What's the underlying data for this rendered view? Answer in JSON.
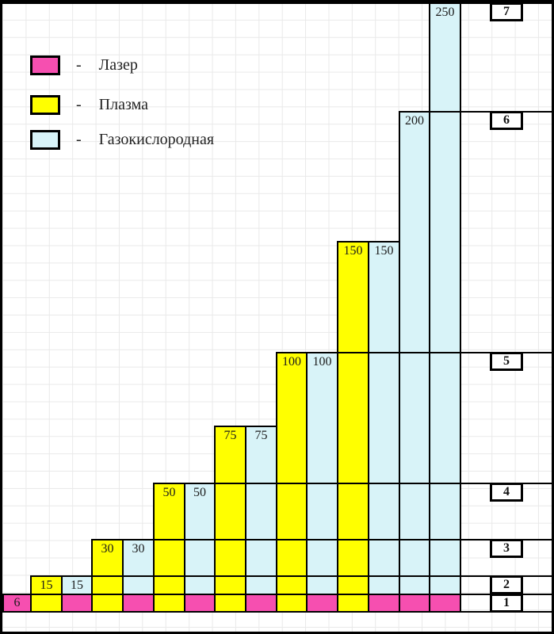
{
  "chart_data": {
    "type": "bar",
    "title": "",
    "xlabel": "",
    "ylabel": "",
    "ylim": [
      0,
      250
    ],
    "grid": true,
    "legend_position": "top-left",
    "legend_separator": "-",
    "legend": [
      {
        "series": "laser",
        "label": "Лазер",
        "color": "#f64fb0"
      },
      {
        "series": "plasma",
        "label": "Плазма",
        "color": "#ffff00"
      },
      {
        "series": "oxyfuel",
        "label": "Газокислородная",
        "color": "#d8f3f8"
      }
    ],
    "baseline_row": {
      "series": "laser",
      "value": 6,
      "label": "6"
    },
    "columns": [
      {
        "series": "plasma",
        "value": 15,
        "label": "15"
      },
      {
        "series": "oxyfuel",
        "value": 15,
        "label": "15"
      },
      {
        "series": "plasma",
        "value": 30,
        "label": "30"
      },
      {
        "series": "oxyfuel",
        "value": 30,
        "label": "30"
      },
      {
        "series": "plasma",
        "value": 50,
        "label": "50"
      },
      {
        "series": "oxyfuel",
        "value": 50,
        "label": "50"
      },
      {
        "series": "plasma",
        "value": 75,
        "label": "75"
      },
      {
        "series": "oxyfuel",
        "value": 75,
        "label": "75"
      },
      {
        "series": "plasma",
        "value": 100,
        "label": "100"
      },
      {
        "series": "oxyfuel",
        "value": 100,
        "label": "100"
      },
      {
        "series": "plasma",
        "value": 150,
        "label": "150"
      },
      {
        "series": "oxyfuel",
        "value": 150,
        "label": "150"
      },
      {
        "series": "oxyfuel",
        "value": 200,
        "label": "200"
      },
      {
        "series": "oxyfuel",
        "value": 250,
        "label": "250"
      }
    ],
    "scale_markers": [
      {
        "label": "7",
        "level": 250
      },
      {
        "label": "6",
        "level": 200
      },
      {
        "label": "5",
        "level": 100
      },
      {
        "label": "4",
        "level": 50
      },
      {
        "label": "3",
        "level": 30
      },
      {
        "label": "2",
        "level": 15
      },
      {
        "label": "1",
        "level": 6
      }
    ]
  }
}
